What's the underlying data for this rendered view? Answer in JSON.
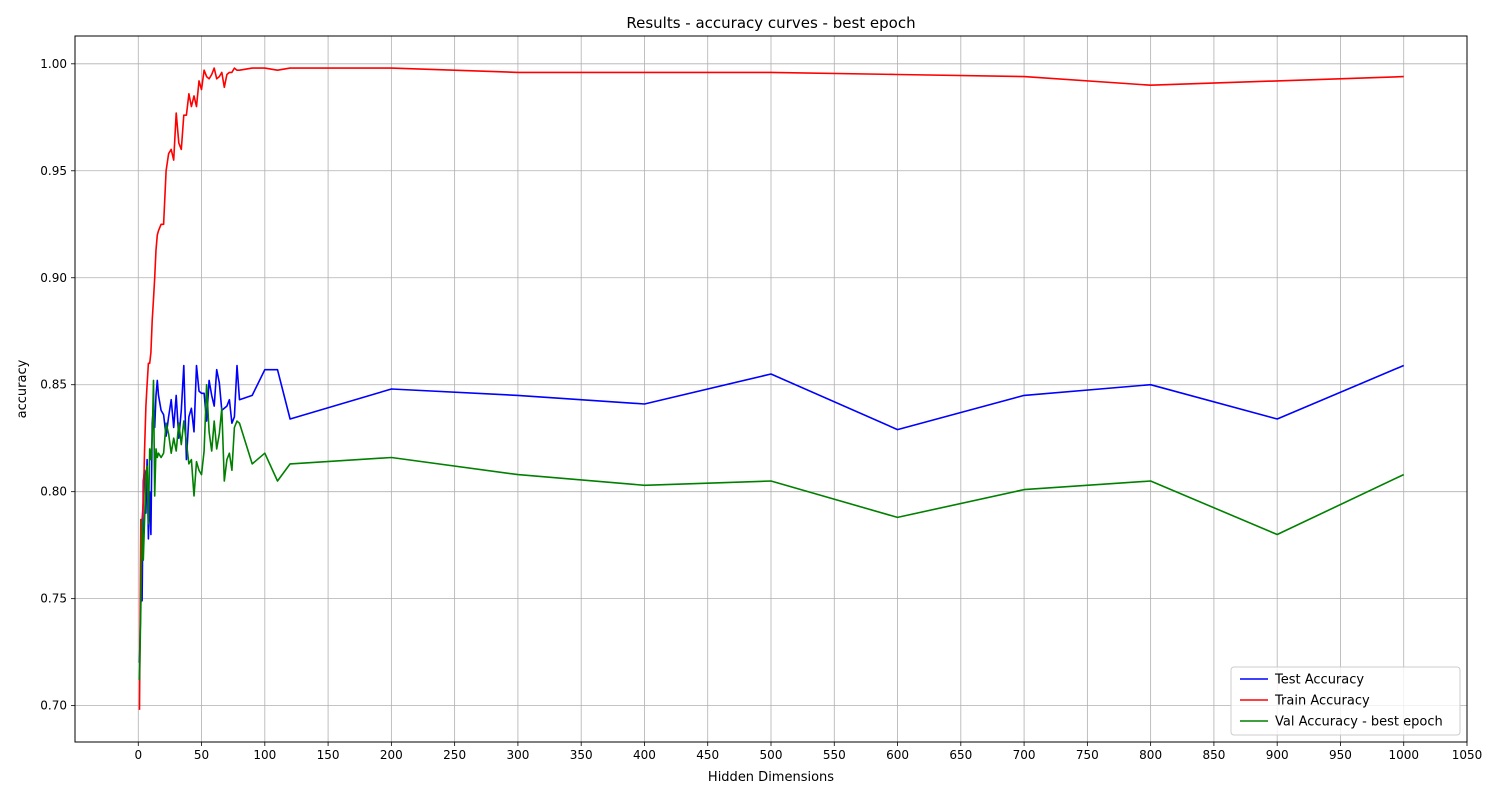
{
  "chart_data": {
    "type": "line",
    "title": "Results - accuracy curves - best epoch",
    "xlabel": "Hidden Dimensions",
    "ylabel": "accuracy",
    "xlim": [
      -50,
      1050
    ],
    "ylim": [
      0.683,
      1.013
    ],
    "xticks": [
      0,
      50,
      100,
      150,
      200,
      250,
      300,
      350,
      400,
      450,
      500,
      550,
      600,
      650,
      700,
      750,
      800,
      850,
      900,
      950,
      1000,
      1050
    ],
    "xtick_labels": [
      "0",
      "50",
      "100",
      "150",
      "200",
      "250",
      "300",
      "350",
      "400",
      "450",
      "500",
      "550",
      "600",
      "650",
      "700",
      "750",
      "800",
      "850",
      "900",
      "950",
      "1000",
      "1050"
    ],
    "yticks": [
      0.7,
      0.75,
      0.8,
      0.85,
      0.9,
      0.95,
      1.0
    ],
    "ytick_labels": [
      "0.70",
      "0.75",
      "0.80",
      "0.85",
      "0.90",
      "0.95",
      "1.00"
    ],
    "grid": true,
    "legend_position": "bottom-right",
    "series": [
      {
        "name": "Test Accuracy",
        "color": "#0000ff",
        "x": [
          1,
          2,
          3,
          4,
          5,
          6,
          7,
          8,
          9,
          10,
          11,
          12,
          13,
          14,
          15,
          16,
          18,
          20,
          22,
          24,
          26,
          28,
          30,
          32,
          34,
          36,
          38,
          40,
          42,
          44,
          46,
          48,
          50,
          52,
          54,
          56,
          58,
          60,
          62,
          64,
          66,
          68,
          70,
          72,
          74,
          76,
          78,
          80,
          90,
          100,
          110,
          120,
          200,
          300,
          400,
          500,
          600,
          700,
          800,
          900,
          1000
        ],
        "y": [
          0.72,
          0.749,
          0.749,
          0.805,
          0.81,
          0.79,
          0.815,
          0.778,
          0.8,
          0.78,
          0.832,
          0.84,
          0.83,
          0.845,
          0.852,
          0.845,
          0.838,
          0.836,
          0.826,
          0.835,
          0.843,
          0.83,
          0.845,
          0.825,
          0.838,
          0.859,
          0.815,
          0.835,
          0.839,
          0.828,
          0.859,
          0.847,
          0.846,
          0.846,
          0.833,
          0.852,
          0.845,
          0.84,
          0.857,
          0.851,
          0.838,
          0.839,
          0.84,
          0.843,
          0.832,
          0.835,
          0.859,
          0.843,
          0.845,
          0.857,
          0.857,
          0.834,
          0.848,
          0.845,
          0.841,
          0.855,
          0.829,
          0.845,
          0.85,
          0.834,
          0.859
        ]
      },
      {
        "name": "Train Accuracy",
        "color": "#ff0000",
        "x": [
          1,
          2,
          3,
          4,
          5,
          6,
          7,
          8,
          9,
          10,
          11,
          12,
          13,
          14,
          15,
          16,
          18,
          20,
          22,
          24,
          26,
          28,
          30,
          32,
          34,
          36,
          38,
          40,
          42,
          44,
          46,
          48,
          50,
          52,
          54,
          56,
          58,
          60,
          62,
          64,
          66,
          68,
          70,
          72,
          74,
          76,
          78,
          80,
          90,
          100,
          110,
          120,
          200,
          300,
          400,
          500,
          600,
          700,
          800,
          900,
          1000
        ],
        "y": [
          0.698,
          0.787,
          0.787,
          0.795,
          0.82,
          0.84,
          0.85,
          0.86,
          0.86,
          0.865,
          0.88,
          0.89,
          0.9,
          0.913,
          0.92,
          0.922,
          0.925,
          0.925,
          0.95,
          0.958,
          0.96,
          0.955,
          0.977,
          0.963,
          0.96,
          0.976,
          0.976,
          0.986,
          0.98,
          0.985,
          0.98,
          0.992,
          0.988,
          0.997,
          0.994,
          0.993,
          0.995,
          0.998,
          0.993,
          0.994,
          0.996,
          0.989,
          0.995,
          0.996,
          0.996,
          0.998,
          0.997,
          0.997,
          0.998,
          0.998,
          0.997,
          0.998,
          0.998,
          0.996,
          0.996,
          0.996,
          0.995,
          0.994,
          0.99,
          0.992,
          0.994
        ]
      },
      {
        "name": "Val Accuracy - best epoch",
        "color": "#008000",
        "x": [
          1,
          2,
          3,
          4,
          5,
          6,
          7,
          8,
          9,
          10,
          11,
          12,
          13,
          14,
          15,
          16,
          18,
          20,
          22,
          24,
          26,
          28,
          30,
          32,
          34,
          36,
          38,
          40,
          42,
          44,
          46,
          48,
          50,
          52,
          54,
          56,
          58,
          60,
          62,
          64,
          66,
          68,
          70,
          72,
          74,
          76,
          78,
          80,
          90,
          100,
          110,
          120,
          200,
          300,
          400,
          500,
          600,
          700,
          800,
          900,
          1000
        ],
        "y": [
          0.712,
          0.745,
          0.787,
          0.768,
          0.787,
          0.808,
          0.812,
          0.785,
          0.82,
          0.815,
          0.825,
          0.852,
          0.798,
          0.82,
          0.816,
          0.818,
          0.816,
          0.818,
          0.832,
          0.827,
          0.818,
          0.825,
          0.819,
          0.832,
          0.822,
          0.833,
          0.823,
          0.813,
          0.815,
          0.798,
          0.814,
          0.81,
          0.808,
          0.819,
          0.85,
          0.828,
          0.819,
          0.833,
          0.82,
          0.827,
          0.839,
          0.805,
          0.815,
          0.818,
          0.81,
          0.83,
          0.833,
          0.832,
          0.813,
          0.818,
          0.805,
          0.813,
          0.816,
          0.808,
          0.803,
          0.805,
          0.788,
          0.801,
          0.805,
          0.78,
          0.808
        ]
      }
    ]
  }
}
